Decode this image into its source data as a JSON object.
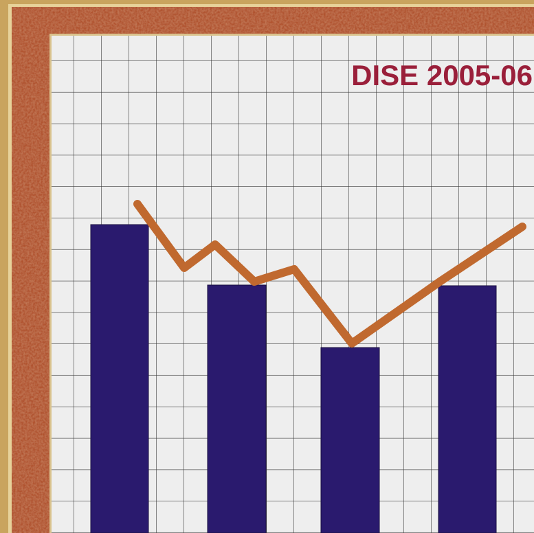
{
  "title": "DISE 2005-06"
}
